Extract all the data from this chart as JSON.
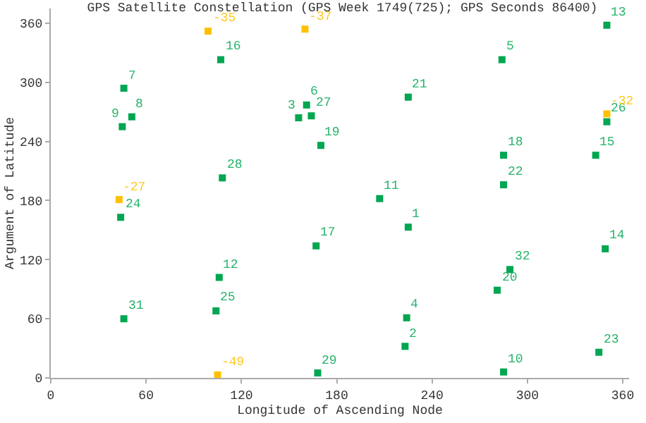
{
  "chart_data": {
    "type": "scatter",
    "title": "GPS Satellite Constellation (GPS Week 1749(725); GPS Seconds 86400)",
    "xlabel": "Longitude of Ascending Node",
    "ylabel": "Argument of Latitude",
    "xlim": [
      0,
      364
    ],
    "xticks": [
      0,
      60,
      120,
      180,
      240,
      300,
      360
    ],
    "ylim": [
      0,
      375
    ],
    "yticks": [
      0,
      60,
      120,
      180,
      240,
      300,
      360
    ],
    "marker": "square",
    "grid": false,
    "series": [
      {
        "color": "#00a651",
        "x": [
          350,
          107,
          46,
          51,
          45,
          156,
          161,
          164,
          170,
          108,
          284,
          225,
          350,
          285,
          343,
          285,
          207,
          44,
          167,
          106,
          104,
          46,
          168,
          225,
          349,
          289,
          281,
          224,
          223,
          345,
          285
        ],
        "values": [
          358,
          323,
          294,
          265,
          255,
          264,
          277,
          266,
          236,
          203,
          323,
          285,
          260,
          226,
          226,
          196,
          182,
          163,
          134,
          102,
          68,
          60,
          5,
          153,
          131,
          110,
          89,
          61,
          32,
          26,
          6
        ]
      },
      {
        "color": "#ffc000",
        "x": [
          99,
          160,
          43,
          350,
          105
        ],
        "values": [
          352,
          354,
          181,
          268,
          3
        ]
      }
    ],
    "annotations": [
      {
        "text": "13",
        "x": 350,
        "y": 358
      },
      {
        "text": "16",
        "x": 107,
        "y": 323
      },
      {
        "text": "7",
        "x": 46,
        "y": 294
      },
      {
        "text": "8",
        "x": 51,
        "y": 265
      },
      {
        "text": "9",
        "x": 45,
        "y": 255
      },
      {
        "text": "3",
        "x": 156,
        "y": 264
      },
      {
        "text": "6",
        "x": 161,
        "y": 277
      },
      {
        "text": "27",
        "x": 164,
        "y": 266
      },
      {
        "text": "19",
        "x": 170,
        "y": 236
      },
      {
        "text": "28",
        "x": 108,
        "y": 203
      },
      {
        "text": "5",
        "x": 284,
        "y": 323
      },
      {
        "text": "21",
        "x": 225,
        "y": 285
      },
      {
        "text": "26",
        "x": 350,
        "y": 260
      },
      {
        "text": "18",
        "x": 285,
        "y": 226
      },
      {
        "text": "15",
        "x": 343,
        "y": 226
      },
      {
        "text": "22",
        "x": 285,
        "y": 196
      },
      {
        "text": "11",
        "x": 207,
        "y": 182
      },
      {
        "text": "24",
        "x": 44,
        "y": 163
      },
      {
        "text": "17",
        "x": 167,
        "y": 134
      },
      {
        "text": "12",
        "x": 106,
        "y": 102
      },
      {
        "text": "25",
        "x": 104,
        "y": 68
      },
      {
        "text": "31",
        "x": 46,
        "y": 60
      },
      {
        "text": "29",
        "x": 168,
        "y": 5
      },
      {
        "text": "1",
        "x": 225,
        "y": 153
      },
      {
        "text": "14",
        "x": 349,
        "y": 131
      },
      {
        "text": "32",
        "x": 289,
        "y": 110
      },
      {
        "text": "20",
        "x": 281,
        "y": 89
      },
      {
        "text": "4",
        "x": 224,
        "y": 61
      },
      {
        "text": "2",
        "x": 223,
        "y": 32
      },
      {
        "text": "23",
        "x": 345,
        "y": 26
      },
      {
        "text": "10",
        "x": 285,
        "y": 6
      },
      {
        "text": "-35",
        "x": 99,
        "y": 352
      },
      {
        "text": "-37",
        "x": 160,
        "y": 354
      },
      {
        "text": "-27",
        "x": 43,
        "y": 181
      },
      {
        "text": "-32",
        "x": 350,
        "y": 268
      },
      {
        "text": "-49",
        "x": 105,
        "y": 3
      }
    ]
  }
}
